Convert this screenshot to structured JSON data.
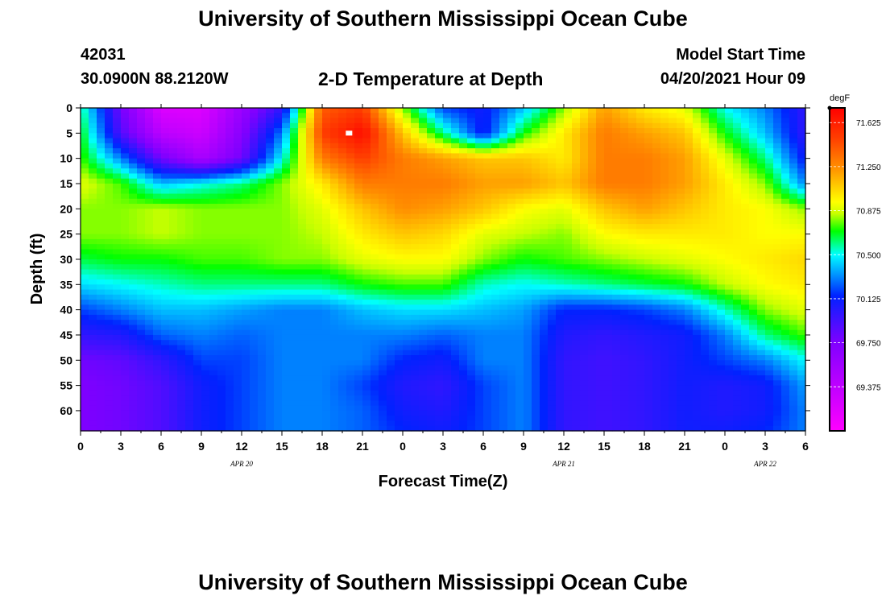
{
  "header": {
    "title_top": "University of Southern Mississippi Ocean Cube",
    "station_id": "42031",
    "station_coords": "30.0900N  88.2120W",
    "plot_title": "2-D Temperature at Depth",
    "model_label": "Model Start Time",
    "model_time": "04/20/2021 Hour 09",
    "title_bottom": "University of Southern Mississippi Ocean Cube"
  },
  "chart_data": {
    "type": "heatmap",
    "title": "2-D Temperature at Depth",
    "xlabel": "Forecast Time(Z)",
    "ylabel": "Depth (ft)",
    "x_tick_labels": [
      "0",
      "3",
      "6",
      "9",
      "12",
      "15",
      "18",
      "21",
      "0",
      "3",
      "6",
      "9",
      "12",
      "15",
      "18",
      "21",
      "0",
      "3",
      "6"
    ],
    "x_date_labels": [
      {
        "label": "APR 20",
        "at_tick": 4
      },
      {
        "label": "APR 21",
        "at_tick": 12
      },
      {
        "label": "APR 22",
        "at_tick": 17
      }
    ],
    "x_range_hours": [
      0,
      54
    ],
    "y_tick_labels": [
      "0",
      "5",
      "10",
      "15",
      "20",
      "25",
      "30",
      "35",
      "40",
      "45",
      "50",
      "55",
      "60"
    ],
    "y_range_ft": [
      0,
      64
    ],
    "colorbar": {
      "unit": "degF",
      "range": [
        69.0,
        71.75
      ],
      "ticks": [
        "71.625",
        "71.250",
        "70.875",
        "70.500",
        "70.125",
        "69.750",
        "69.375"
      ]
    },
    "colormap": [
      {
        "v": 69.0,
        "c": "#ff00ff"
      },
      {
        "v": 69.75,
        "c": "#8000ff"
      },
      {
        "v": 70.15,
        "c": "#0022ff"
      },
      {
        "v": 70.5,
        "c": "#00ffff"
      },
      {
        "v": 70.7,
        "c": "#00ff00"
      },
      {
        "v": 70.85,
        "c": "#c8ff00"
      },
      {
        "v": 70.95,
        "c": "#ffff00"
      },
      {
        "v": 71.25,
        "c": "#ff8c00"
      },
      {
        "v": 71.5,
        "c": "#ff3c00"
      },
      {
        "v": 71.75,
        "c": "#ff0000"
      }
    ],
    "temperature_field_degF": {
      "hours": [
        0,
        3,
        6,
        9,
        12,
        15,
        18,
        21,
        24,
        27,
        30,
        33,
        36,
        39,
        42,
        45,
        48,
        51,
        54
      ],
      "depths_ft": [
        0,
        5,
        10,
        15,
        20,
        25,
        30,
        35,
        40,
        45,
        50,
        55,
        60,
        64
      ],
      "values": [
        [
          70.6,
          69.8,
          69.2,
          69.2,
          69.6,
          70.0,
          71.4,
          71.5,
          70.8,
          70.2,
          70.1,
          70.4,
          70.8,
          71.2,
          71.0,
          70.9,
          70.5,
          70.3,
          70.0
        ],
        [
          70.7,
          69.9,
          69.4,
          69.3,
          69.7,
          70.3,
          71.5,
          71.7,
          71.1,
          70.6,
          70.1,
          70.7,
          71.0,
          71.3,
          71.2,
          71.1,
          70.7,
          70.4,
          70.0
        ],
        [
          70.75,
          70.3,
          69.8,
          69.5,
          69.8,
          70.5,
          71.3,
          71.5,
          71.3,
          71.2,
          71.1,
          71.1,
          71.0,
          71.3,
          71.3,
          71.2,
          70.9,
          70.6,
          70.1
        ],
        [
          70.9,
          70.75,
          70.4,
          70.5,
          70.6,
          70.8,
          71.0,
          71.3,
          71.3,
          71.3,
          71.2,
          71.2,
          71.1,
          71.3,
          71.3,
          71.2,
          71.0,
          70.8,
          70.3
        ],
        [
          70.8,
          70.8,
          70.85,
          70.8,
          70.8,
          70.8,
          70.9,
          71.1,
          71.25,
          71.2,
          71.1,
          70.95,
          70.9,
          71.1,
          71.2,
          71.1,
          71.0,
          70.95,
          70.8
        ],
        [
          70.8,
          70.8,
          70.85,
          70.8,
          70.8,
          70.8,
          70.85,
          71.0,
          71.1,
          71.05,
          70.9,
          70.85,
          70.8,
          70.95,
          71.0,
          71.0,
          71.0,
          70.95,
          70.95
        ],
        [
          70.65,
          70.7,
          70.7,
          70.75,
          70.75,
          70.8,
          70.8,
          70.9,
          70.95,
          70.95,
          70.8,
          70.7,
          70.75,
          70.8,
          70.85,
          70.9,
          70.95,
          71.0,
          71.05
        ],
        [
          70.45,
          70.5,
          70.55,
          70.6,
          70.6,
          70.6,
          70.6,
          70.7,
          70.75,
          70.75,
          70.55,
          70.5,
          70.55,
          70.6,
          70.65,
          70.7,
          70.85,
          70.95,
          71.0
        ],
        [
          70.2,
          70.3,
          70.4,
          70.4,
          70.35,
          70.3,
          70.3,
          70.4,
          70.45,
          70.45,
          70.4,
          70.35,
          70.15,
          70.15,
          70.2,
          70.3,
          70.55,
          70.8,
          70.9
        ],
        [
          70.0,
          70.05,
          70.25,
          70.3,
          70.25,
          70.3,
          70.3,
          70.3,
          70.3,
          70.25,
          70.3,
          70.3,
          70.05,
          70.0,
          70.05,
          70.1,
          70.3,
          70.6,
          70.75
        ],
        [
          69.8,
          69.85,
          70.0,
          70.2,
          70.2,
          70.3,
          70.3,
          70.3,
          70.15,
          70.1,
          70.3,
          70.3,
          70.0,
          69.95,
          70.0,
          70.1,
          70.2,
          70.3,
          70.5
        ],
        [
          69.75,
          69.8,
          69.9,
          70.1,
          70.2,
          70.3,
          70.3,
          70.2,
          70.05,
          70.0,
          70.2,
          70.3,
          70.0,
          69.95,
          70.0,
          70.1,
          70.05,
          70.1,
          70.35
        ],
        [
          69.75,
          69.8,
          69.9,
          70.1,
          70.2,
          70.3,
          70.3,
          70.25,
          70.1,
          70.05,
          70.2,
          70.3,
          70.0,
          69.95,
          70.0,
          70.1,
          70.05,
          70.1,
          70.3
        ],
        [
          69.75,
          69.8,
          69.9,
          70.1,
          70.2,
          70.3,
          70.3,
          70.25,
          70.15,
          70.1,
          70.2,
          70.3,
          70.0,
          69.95,
          70.0,
          70.1,
          70.1,
          70.15,
          70.3
        ]
      ]
    },
    "marker": {
      "hour": 20,
      "depth_ft": 5,
      "color": "#ffffff"
    }
  }
}
